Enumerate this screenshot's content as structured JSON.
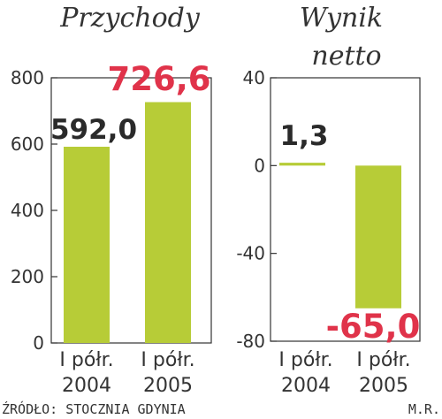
{
  "chart_data": [
    {
      "type": "bar",
      "title": "Przychody",
      "categories": [
        "I półr. 2004",
        "I półr. 2005"
      ],
      "category_lines": [
        [
          "I półr.",
          "2004"
        ],
        [
          "I półr.",
          "2005"
        ]
      ],
      "values": [
        592.0,
        726.6
      ],
      "value_labels": [
        "592,0",
        "726,6"
      ],
      "value_label_colors": [
        "#2a2a2a",
        "#e0334a"
      ],
      "ylim": [
        0,
        800
      ],
      "yticks": [
        0,
        200,
        400,
        600,
        800
      ],
      "ytick_labels": [
        "0",
        "200",
        "400",
        "600",
        "800"
      ],
      "grid": false,
      "bar_color": "#b7cc37"
    },
    {
      "type": "bar",
      "title": "Wynik netto",
      "title_lines": [
        "Wynik",
        "netto"
      ],
      "categories": [
        "I półr. 2004",
        "I półr. 2005"
      ],
      "category_lines": [
        [
          "I półr.",
          "2004"
        ],
        [
          "I półr.",
          "2005"
        ]
      ],
      "values": [
        1.3,
        -65.0
      ],
      "value_labels": [
        "1,3",
        "-65,0"
      ],
      "value_label_colors": [
        "#2a2a2a",
        "#e0334a"
      ],
      "ylim": [
        -80,
        40
      ],
      "yticks": [
        -80,
        -40,
        0,
        40
      ],
      "ytick_labels": [
        "-80",
        "-40",
        "0",
        "40"
      ],
      "grid": false,
      "bar_color": "#b7cc37"
    }
  ],
  "footer": {
    "source": "ŹRÓDŁO: STOCZNIA GDYNIA",
    "author": "M.R."
  }
}
